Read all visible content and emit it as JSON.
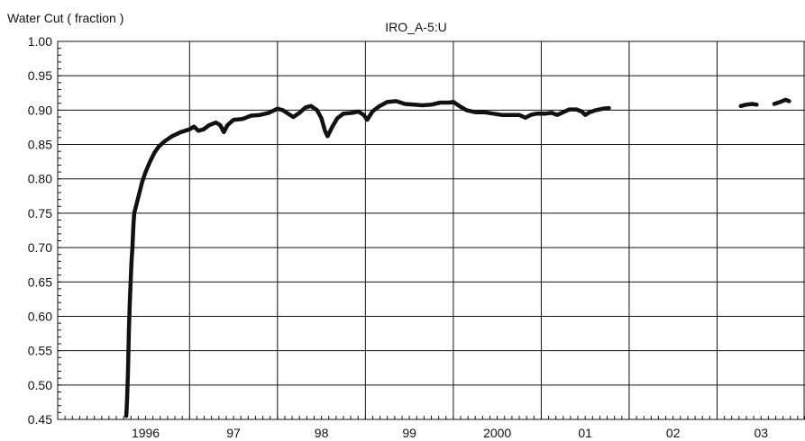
{
  "chart_data": {
    "type": "line",
    "title": "IRO_A-5:U",
    "ylabel": "Water Cut ( fraction )",
    "xlabel": "",
    "ylim": [
      0.45,
      1.0
    ],
    "xlim": [
      1995.0,
      2003.5
    ],
    "y_ticks": [
      "1.00",
      "0.95",
      "0.90",
      "0.85",
      "0.80",
      "0.75",
      "0.70",
      "0.65",
      "0.60",
      "0.55",
      "0.50",
      "0.45"
    ],
    "y_tick_values": [
      1.0,
      0.95,
      0.9,
      0.85,
      0.8,
      0.75,
      0.7,
      0.65,
      0.6,
      0.55,
      0.5,
      0.45
    ],
    "x_ticks": [
      "1996",
      "97",
      "98",
      "99",
      "2000",
      "01",
      "02",
      "03"
    ],
    "x_tick_values": [
      1996.0,
      1997.0,
      1998.0,
      1999.0,
      2000.0,
      2001.0,
      2002.0,
      2003.0
    ],
    "x_gridlines": [
      1996.5,
      1997.5,
      1998.5,
      1999.5,
      2000.5,
      2001.5,
      2002.5
    ],
    "grid": true,
    "series": [
      {
        "name": "",
        "color": "#111111",
        "segments": [
          [
            [
              1995.78,
              0.455
            ],
            [
              1995.79,
              0.48
            ],
            [
              1995.8,
              0.52
            ],
            [
              1995.81,
              0.58
            ],
            [
              1995.82,
              0.62
            ],
            [
              1995.83,
              0.65
            ],
            [
              1995.84,
              0.68
            ],
            [
              1995.85,
              0.7
            ],
            [
              1995.86,
              0.73
            ],
            [
              1995.87,
              0.75
            ],
            [
              1995.9,
              0.765
            ],
            [
              1995.93,
              0.78
            ],
            [
              1995.96,
              0.795
            ],
            [
              1996.0,
              0.81
            ],
            [
              1996.05,
              0.825
            ],
            [
              1996.1,
              0.838
            ],
            [
              1996.15,
              0.847
            ],
            [
              1996.22,
              0.855
            ],
            [
              1996.3,
              0.862
            ],
            [
              1996.4,
              0.868
            ],
            [
              1996.5,
              0.872
            ],
            [
              1996.55,
              0.876
            ],
            [
              1996.6,
              0.87
            ],
            [
              1996.66,
              0.872
            ],
            [
              1996.72,
              0.878
            ],
            [
              1996.8,
              0.882
            ],
            [
              1996.85,
              0.878
            ],
            [
              1996.89,
              0.868
            ],
            [
              1996.93,
              0.878
            ],
            [
              1997.0,
              0.886
            ],
            [
              1997.1,
              0.887
            ],
            [
              1997.2,
              0.892
            ],
            [
              1997.3,
              0.893
            ],
            [
              1997.4,
              0.896
            ],
            [
              1997.5,
              0.902
            ],
            [
              1997.56,
              0.9
            ],
            [
              1997.62,
              0.895
            ],
            [
              1997.68,
              0.89
            ],
            [
              1997.75,
              0.896
            ],
            [
              1997.82,
              0.904
            ],
            [
              1997.88,
              0.906
            ],
            [
              1997.95,
              0.9
            ],
            [
              1998.0,
              0.888
            ],
            [
              1998.04,
              0.87
            ],
            [
              1998.07,
              0.862
            ],
            [
              1998.12,
              0.875
            ],
            [
              1998.18,
              0.888
            ],
            [
              1998.25,
              0.895
            ],
            [
              1998.35,
              0.896
            ],
            [
              1998.42,
              0.898
            ],
            [
              1998.48,
              0.893
            ],
            [
              1998.52,
              0.886
            ],
            [
              1998.58,
              0.898
            ],
            [
              1998.65,
              0.905
            ],
            [
              1998.75,
              0.912
            ],
            [
              1998.85,
              0.913
            ],
            [
              1998.95,
              0.909
            ],
            [
              1999.05,
              0.908
            ],
            [
              1999.15,
              0.907
            ],
            [
              1999.25,
              0.908
            ],
            [
              1999.35,
              0.911
            ],
            [
              1999.45,
              0.911
            ],
            [
              1999.5,
              0.912
            ],
            [
              1999.58,
              0.905
            ],
            [
              1999.65,
              0.9
            ],
            [
              1999.75,
              0.897
            ],
            [
              1999.85,
              0.897
            ],
            [
              1999.95,
              0.895
            ],
            [
              2000.05,
              0.893
            ],
            [
              2000.15,
              0.893
            ],
            [
              2000.25,
              0.893
            ],
            [
              2000.32,
              0.889
            ],
            [
              2000.38,
              0.893
            ],
            [
              2000.45,
              0.895
            ],
            [
              2000.55,
              0.895
            ],
            [
              2000.62,
              0.896
            ],
            [
              2000.68,
              0.893
            ],
            [
              2000.75,
              0.897
            ],
            [
              2000.82,
              0.901
            ],
            [
              2000.9,
              0.901
            ],
            [
              2000.96,
              0.898
            ],
            [
              2001.0,
              0.893
            ],
            [
              2001.05,
              0.897
            ],
            [
              2001.12,
              0.9
            ],
            [
              2001.2,
              0.902
            ],
            [
              2001.27,
              0.903
            ]
          ],
          [
            [
              2002.77,
              0.906
            ],
            [
              2002.83,
              0.908
            ],
            [
              2002.9,
              0.909
            ],
            [
              2002.95,
              0.908
            ]
          ],
          [
            [
              2003.15,
              0.909
            ],
            [
              2003.22,
              0.912
            ],
            [
              2003.28,
              0.915
            ],
            [
              2003.32,
              0.913
            ]
          ]
        ]
      }
    ]
  }
}
